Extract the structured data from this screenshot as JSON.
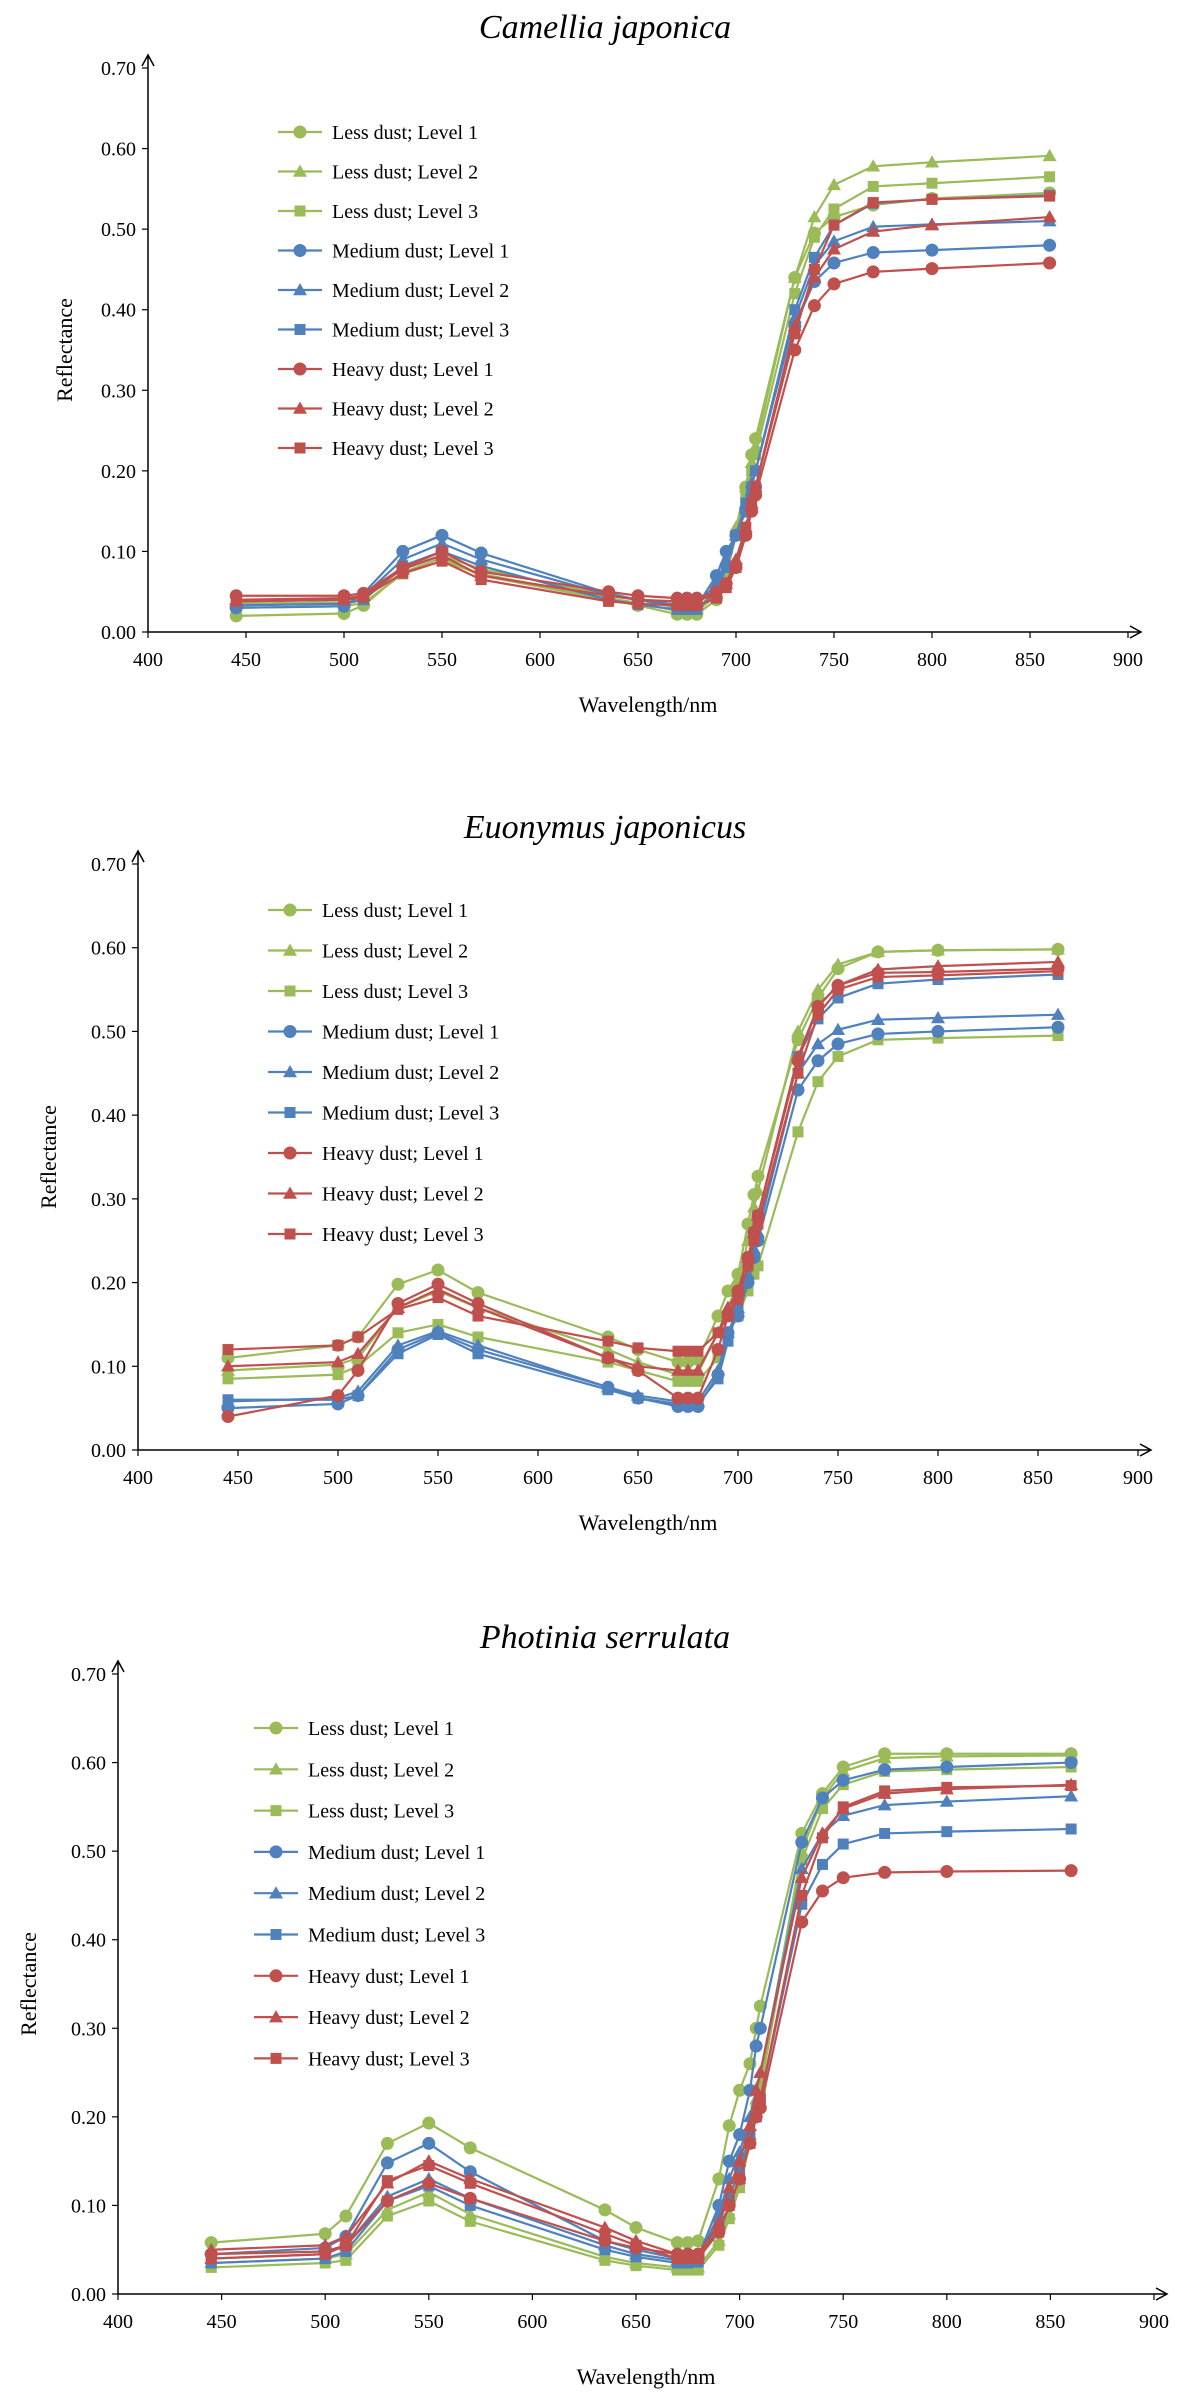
{
  "chart_data": [
    {
      "type": "line",
      "title": "Camellia japonica",
      "xlabel": "Wavelength/nm",
      "ylabel": "Reflectance",
      "xlim": [
        400,
        900
      ],
      "ylim": [
        0,
        0.7
      ],
      "xticks": [
        "400",
        "450",
        "500",
        "550",
        "600",
        "650",
        "700",
        "750",
        "800",
        "850",
        "900"
      ],
      "yticks": [
        "0.00",
        "0.10",
        "0.20",
        "0.30",
        "0.40",
        "0.50",
        "0.60",
        "0.70"
      ],
      "grid": false,
      "legend_position": "upper-left",
      "x": [
        445,
        500,
        510,
        530,
        550,
        570,
        635,
        650,
        670,
        675,
        680,
        690,
        695,
        700,
        705,
        708,
        710,
        730,
        740,
        750,
        770,
        800,
        860
      ],
      "series": [
        {
          "name": "Less dust; Level 1",
          "color": "#9bbb59",
          "marker": "circle",
          "values": [
            0.02,
            0.023,
            0.033,
            0.074,
            0.092,
            0.07,
            0.04,
            0.033,
            0.022,
            0.022,
            0.022,
            0.04,
            0.07,
            0.12,
            0.18,
            0.22,
            0.24,
            0.44,
            0.495,
            0.515,
            0.53,
            0.538,
            0.545
          ]
        },
        {
          "name": "Less dust; Level 2",
          "color": "#9bbb59",
          "marker": "triangle",
          "values": [
            0.035,
            0.037,
            0.04,
            0.08,
            0.095,
            0.078,
            0.046,
            0.04,
            0.03,
            0.03,
            0.03,
            0.05,
            0.08,
            0.13,
            0.18,
            0.21,
            0.23,
            0.44,
            0.515,
            0.555,
            0.578,
            0.583,
            0.591
          ]
        },
        {
          "name": "Less dust; Level 3",
          "color": "#9bbb59",
          "marker": "square",
          "values": [
            0.03,
            0.032,
            0.036,
            0.072,
            0.088,
            0.072,
            0.042,
            0.036,
            0.026,
            0.026,
            0.026,
            0.045,
            0.072,
            0.12,
            0.17,
            0.2,
            0.22,
            0.42,
            0.49,
            0.525,
            0.553,
            0.557,
            0.565
          ]
        },
        {
          "name": "Medium dust; Level 1",
          "color": "#4f81bd",
          "marker": "circle",
          "values": [
            0.03,
            0.032,
            0.048,
            0.1,
            0.12,
            0.098,
            0.048,
            0.04,
            0.032,
            0.032,
            0.032,
            0.07,
            0.1,
            0.12,
            0.15,
            0.17,
            0.18,
            0.38,
            0.435,
            0.458,
            0.471,
            0.474,
            0.48
          ]
        },
        {
          "name": "Medium dust; Level 2",
          "color": "#4f81bd",
          "marker": "triangle",
          "values": [
            0.038,
            0.04,
            0.045,
            0.09,
            0.11,
            0.09,
            0.046,
            0.04,
            0.034,
            0.034,
            0.034,
            0.06,
            0.09,
            0.12,
            0.16,
            0.185,
            0.2,
            0.39,
            0.455,
            0.485,
            0.503,
            0.506,
            0.51
          ]
        },
        {
          "name": "Medium dust; Level 3",
          "color": "#4f81bd",
          "marker": "square",
          "values": [
            0.033,
            0.035,
            0.04,
            0.082,
            0.1,
            0.082,
            0.04,
            0.034,
            0.028,
            0.028,
            0.028,
            0.05,
            0.08,
            0.12,
            0.16,
            0.18,
            0.2,
            0.4,
            0.465,
            0.505,
            0.532,
            0.537,
            0.542
          ]
        },
        {
          "name": "Heavy dust; Level 1",
          "color": "#c0504d",
          "marker": "circle",
          "values": [
            0.045,
            0.045,
            0.048,
            0.08,
            0.1,
            0.075,
            0.05,
            0.045,
            0.042,
            0.042,
            0.042,
            0.05,
            0.06,
            0.08,
            0.12,
            0.15,
            0.17,
            0.35,
            0.405,
            0.432,
            0.447,
            0.451,
            0.458
          ]
        },
        {
          "name": "Heavy dust; Level 2",
          "color": "#c0504d",
          "marker": "triangle",
          "values": [
            0.04,
            0.042,
            0.045,
            0.078,
            0.095,
            0.07,
            0.045,
            0.04,
            0.038,
            0.038,
            0.038,
            0.048,
            0.06,
            0.09,
            0.13,
            0.16,
            0.18,
            0.38,
            0.44,
            0.475,
            0.497,
            0.505,
            0.515
          ]
        },
        {
          "name": "Heavy dust; Level 3",
          "color": "#c0504d",
          "marker": "square",
          "values": [
            0.038,
            0.04,
            0.043,
            0.073,
            0.088,
            0.065,
            0.038,
            0.035,
            0.033,
            0.033,
            0.033,
            0.042,
            0.055,
            0.08,
            0.13,
            0.16,
            0.18,
            0.37,
            0.45,
            0.505,
            0.533,
            0.537,
            0.541
          ]
        }
      ]
    },
    {
      "type": "line",
      "title": "Euonymus japonicus",
      "xlabel": "Wavelength/nm",
      "ylabel": "Reflectance",
      "xlim": [
        400,
        900
      ],
      "ylim": [
        0,
        0.7
      ],
      "xticks": [
        "400",
        "450",
        "500",
        "550",
        "600",
        "650",
        "700",
        "750",
        "800",
        "850",
        "900"
      ],
      "yticks": [
        "0.00",
        "0.10",
        "0.20",
        "0.30",
        "0.40",
        "0.50",
        "0.60",
        "0.70"
      ],
      "grid": false,
      "legend_position": "upper-left",
      "x": [
        445,
        500,
        510,
        530,
        550,
        570,
        635,
        650,
        670,
        675,
        680,
        690,
        695,
        700,
        705,
        708,
        710,
        730,
        740,
        750,
        770,
        800,
        860
      ],
      "series": [
        {
          "name": "Less dust; Level 1",
          "color": "#9bbb59",
          "marker": "circle",
          "values": [
            0.11,
            0.125,
            0.135,
            0.198,
            0.215,
            0.188,
            0.135,
            0.12,
            0.105,
            0.105,
            0.108,
            0.16,
            0.19,
            0.21,
            0.27,
            0.305,
            0.327,
            0.49,
            0.54,
            0.575,
            0.595,
            0.597,
            0.598
          ]
        },
        {
          "name": "Less dust; Level 2",
          "color": "#9bbb59",
          "marker": "triangle",
          "values": [
            0.095,
            0.102,
            0.11,
            0.17,
            0.19,
            0.17,
            0.12,
            0.105,
            0.09,
            0.09,
            0.092,
            0.14,
            0.17,
            0.2,
            0.25,
            0.29,
            0.31,
            0.5,
            0.55,
            0.58,
            0.595,
            0.597,
            0.598
          ]
        },
        {
          "name": "Less dust; Level 3",
          "color": "#9bbb59",
          "marker": "square",
          "values": [
            0.085,
            0.09,
            0.1,
            0.14,
            0.15,
            0.135,
            0.105,
            0.095,
            0.082,
            0.082,
            0.082,
            0.11,
            0.14,
            0.16,
            0.19,
            0.21,
            0.22,
            0.38,
            0.44,
            0.47,
            0.49,
            0.492,
            0.495
          ]
        },
        {
          "name": "Medium dust; Level 1",
          "color": "#4f81bd",
          "marker": "circle",
          "values": [
            0.05,
            0.055,
            0.065,
            0.12,
            0.14,
            0.12,
            0.075,
            0.062,
            0.052,
            0.052,
            0.052,
            0.09,
            0.14,
            0.16,
            0.2,
            0.23,
            0.25,
            0.43,
            0.465,
            0.485,
            0.497,
            0.5,
            0.505
          ]
        },
        {
          "name": "Medium dust; Level 2",
          "color": "#4f81bd",
          "marker": "triangle",
          "values": [
            0.058,
            0.062,
            0.07,
            0.125,
            0.142,
            0.125,
            0.075,
            0.065,
            0.058,
            0.058,
            0.058,
            0.095,
            0.14,
            0.17,
            0.21,
            0.24,
            0.26,
            0.45,
            0.485,
            0.502,
            0.514,
            0.516,
            0.52
          ]
        },
        {
          "name": "Medium dust; Level 3",
          "color": "#4f81bd",
          "marker": "square",
          "values": [
            0.06,
            0.06,
            0.065,
            0.115,
            0.138,
            0.115,
            0.072,
            0.062,
            0.055,
            0.055,
            0.055,
            0.085,
            0.13,
            0.17,
            0.22,
            0.26,
            0.28,
            0.47,
            0.515,
            0.54,
            0.557,
            0.562,
            0.568
          ]
        },
        {
          "name": "Heavy dust; Level 1",
          "color": "#c0504d",
          "marker": "circle",
          "values": [
            0.04,
            0.065,
            0.095,
            0.175,
            0.198,
            0.175,
            0.11,
            0.095,
            0.062,
            0.062,
            0.062,
            0.12,
            0.16,
            0.19,
            0.23,
            0.26,
            0.28,
            0.465,
            0.53,
            0.555,
            0.57,
            0.571,
            0.575
          ]
        },
        {
          "name": "Heavy dust; Level 2",
          "color": "#c0504d",
          "marker": "triangle",
          "values": [
            0.1,
            0.105,
            0.115,
            0.17,
            0.192,
            0.17,
            0.11,
            0.1,
            0.095,
            0.095,
            0.095,
            0.14,
            0.17,
            0.19,
            0.23,
            0.26,
            0.28,
            0.47,
            0.53,
            0.555,
            0.574,
            0.578,
            0.583
          ]
        },
        {
          "name": "Heavy dust; Level 3",
          "color": "#c0504d",
          "marker": "square",
          "values": [
            0.12,
            0.125,
            0.135,
            0.168,
            0.182,
            0.16,
            0.13,
            0.122,
            0.118,
            0.118,
            0.118,
            0.14,
            0.16,
            0.18,
            0.22,
            0.25,
            0.27,
            0.45,
            0.52,
            0.55,
            0.565,
            0.567,
            0.572
          ]
        }
      ]
    },
    {
      "type": "line",
      "title": "Photinia serrulata",
      "xlabel": "Wavelength/nm",
      "ylabel": "Reflectance",
      "xlim": [
        400,
        900
      ],
      "ylim": [
        0,
        0.7
      ],
      "xticks": [
        "400",
        "450",
        "500",
        "550",
        "600",
        "650",
        "700",
        "750",
        "800",
        "850",
        "900"
      ],
      "yticks": [
        "0.00",
        "0.10",
        "0.20",
        "0.30",
        "0.40",
        "0.50",
        "0.60",
        "0.70"
      ],
      "grid": false,
      "legend_position": "upper-left",
      "x": [
        445,
        500,
        510,
        530,
        550,
        570,
        635,
        650,
        670,
        675,
        680,
        690,
        695,
        700,
        705,
        708,
        710,
        730,
        740,
        750,
        770,
        800,
        860
      ],
      "series": [
        {
          "name": "Less dust; Level 1",
          "color": "#9bbb59",
          "marker": "circle",
          "values": [
            0.058,
            0.068,
            0.088,
            0.17,
            0.193,
            0.165,
            0.095,
            0.075,
            0.058,
            0.058,
            0.06,
            0.13,
            0.19,
            0.23,
            0.26,
            0.3,
            0.325,
            0.52,
            0.565,
            0.595,
            0.61,
            0.61,
            0.61
          ]
        },
        {
          "name": "Less dust; Level 2",
          "color": "#9bbb59",
          "marker": "triangle",
          "values": [
            0.035,
            0.04,
            0.045,
            0.095,
            0.115,
            0.09,
            0.042,
            0.035,
            0.03,
            0.03,
            0.03,
            0.06,
            0.09,
            0.13,
            0.18,
            0.22,
            0.24,
            0.5,
            0.56,
            0.59,
            0.605,
            0.607,
            0.608
          ]
        },
        {
          "name": "Less dust; Level 3",
          "color": "#9bbb59",
          "marker": "square",
          "values": [
            0.03,
            0.035,
            0.038,
            0.088,
            0.105,
            0.082,
            0.038,
            0.032,
            0.027,
            0.027,
            0.027,
            0.055,
            0.085,
            0.12,
            0.17,
            0.21,
            0.23,
            0.49,
            0.548,
            0.575,
            0.59,
            0.592,
            0.595
          ]
        },
        {
          "name": "Medium dust; Level 1",
          "color": "#4f81bd",
          "marker": "circle",
          "values": [
            0.045,
            0.052,
            0.065,
            0.148,
            0.17,
            0.138,
            0.06,
            0.05,
            0.04,
            0.04,
            0.042,
            0.1,
            0.15,
            0.18,
            0.23,
            0.28,
            0.3,
            0.51,
            0.56,
            0.58,
            0.592,
            0.595,
            0.6
          ]
        },
        {
          "name": "Medium dust; Level 2",
          "color": "#4f81bd",
          "marker": "triangle",
          "values": [
            0.04,
            0.045,
            0.055,
            0.11,
            0.13,
            0.108,
            0.055,
            0.045,
            0.038,
            0.038,
            0.04,
            0.09,
            0.13,
            0.16,
            0.2,
            0.23,
            0.25,
            0.48,
            0.52,
            0.54,
            0.552,
            0.556,
            0.562
          ]
        },
        {
          "name": "Medium dust; Level 3",
          "color": "#4f81bd",
          "marker": "square",
          "values": [
            0.035,
            0.04,
            0.048,
            0.105,
            0.122,
            0.1,
            0.05,
            0.042,
            0.035,
            0.035,
            0.036,
            0.08,
            0.11,
            0.14,
            0.18,
            0.2,
            0.22,
            0.44,
            0.485,
            0.508,
            0.52,
            0.522,
            0.525
          ]
        },
        {
          "name": "Heavy dust; Level 1",
          "color": "#c0504d",
          "marker": "circle",
          "values": [
            0.045,
            0.048,
            0.055,
            0.105,
            0.125,
            0.108,
            0.06,
            0.052,
            0.045,
            0.045,
            0.045,
            0.07,
            0.1,
            0.13,
            0.17,
            0.2,
            0.21,
            0.42,
            0.455,
            0.47,
            0.476,
            0.477,
            0.478
          ]
        },
        {
          "name": "Heavy dust; Level 2",
          "color": "#c0504d",
          "marker": "triangle",
          "values": [
            0.05,
            0.055,
            0.065,
            0.125,
            0.15,
            0.13,
            0.075,
            0.06,
            0.045,
            0.045,
            0.045,
            0.08,
            0.12,
            0.15,
            0.19,
            0.23,
            0.25,
            0.47,
            0.52,
            0.548,
            0.565,
            0.57,
            0.575
          ]
        },
        {
          "name": "Heavy dust; Level 3",
          "color": "#c0504d",
          "marker": "square",
          "values": [
            0.04,
            0.045,
            0.055,
            0.128,
            0.145,
            0.125,
            0.068,
            0.055,
            0.04,
            0.04,
            0.04,
            0.07,
            0.1,
            0.13,
            0.17,
            0.2,
            0.22,
            0.45,
            0.515,
            0.55,
            0.568,
            0.572,
            0.574
          ]
        }
      ]
    }
  ]
}
